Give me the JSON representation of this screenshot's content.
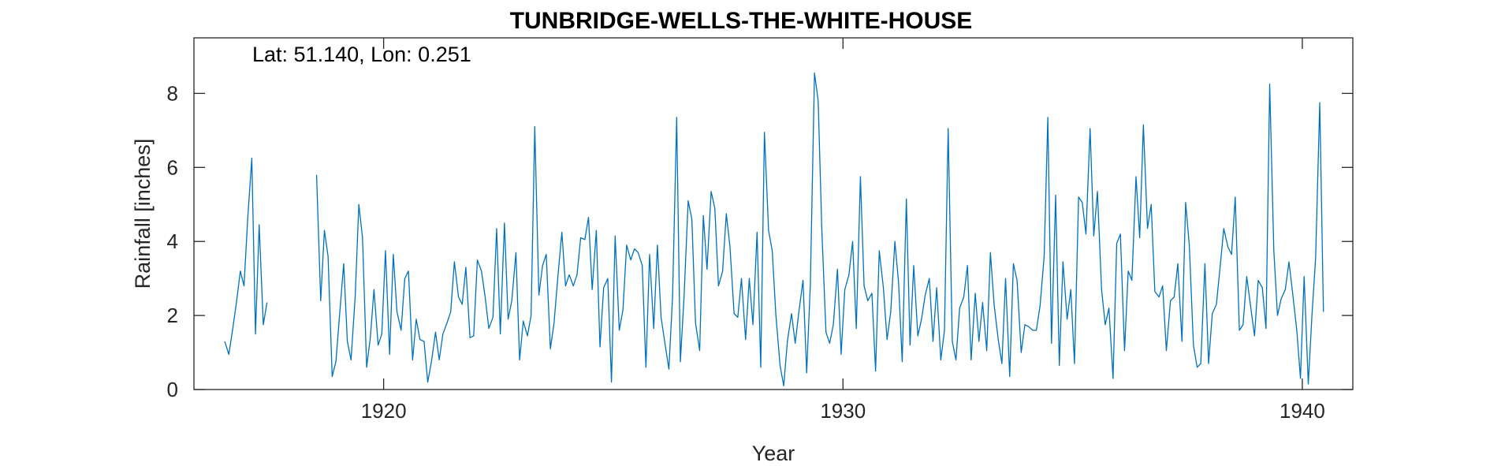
{
  "chart_data": {
    "type": "line",
    "title": "TUNBRIDGE-WELLS-THE-WHITE-HOUSE",
    "annotation": "Lat: 51.140, Lon: 0.251",
    "xlabel": "Year",
    "ylabel": "Rainfall [inches]",
    "xlim": [
      1915.87,
      1941.1
    ],
    "ylim": [
      0,
      9.5
    ],
    "xticks": [
      1920,
      1930,
      1940
    ],
    "xtick_labels": [
      "1920",
      "1930",
      "1940"
    ],
    "yticks": [
      0,
      2,
      4,
      6,
      8
    ],
    "ytick_labels": [
      "0",
      "2",
      "4",
      "6",
      "8"
    ],
    "grid": false,
    "line_color": "#0072bd",
    "series": [
      {
        "segments": [
          {
            "x": [
              1916.54,
              1916.63,
              1916.71,
              1916.79,
              1916.88,
              1916.96,
              1917.04,
              1917.13,
              1917.21,
              1917.29,
              1917.38,
              1917.46
            ],
            "y": [
              1.3,
              0.95,
              1.6,
              2.3,
              3.2,
              2.8,
              4.6,
              6.25,
              1.5,
              4.45,
              1.75,
              2.35
            ]
          },
          {
            "x": [
              1918.54,
              1918.63,
              1918.71,
              1918.79,
              1918.88,
              1918.96,
              1919.04,
              1919.13,
              1919.21,
              1919.29,
              1919.38,
              1919.46,
              1919.54,
              1919.63,
              1919.71,
              1919.79,
              1919.88,
              1919.96,
              1920.04,
              1920.13,
              1920.21,
              1920.29,
              1920.38,
              1920.46,
              1920.54,
              1920.63,
              1920.71,
              1920.79,
              1920.88,
              1920.96,
              1921.04,
              1921.13,
              1921.21,
              1921.29,
              1921.38,
              1921.46,
              1921.54,
              1921.63,
              1921.71,
              1921.79,
              1921.88,
              1921.96,
              1922.04,
              1922.13,
              1922.21,
              1922.29,
              1922.38,
              1922.46,
              1922.54,
              1922.63,
              1922.71,
              1922.79,
              1922.88,
              1922.96,
              1923.04,
              1923.13,
              1923.21,
              1923.29,
              1923.38,
              1923.46,
              1923.54,
              1923.63,
              1923.71,
              1923.79,
              1923.88,
              1923.96,
              1924.04,
              1924.13,
              1924.21,
              1924.29,
              1924.38,
              1924.46,
              1924.54,
              1924.63,
              1924.71,
              1924.79,
              1924.88,
              1924.96,
              1925.04,
              1925.13,
              1925.21,
              1925.29,
              1925.38,
              1925.46,
              1925.54,
              1925.63,
              1925.71,
              1925.79,
              1925.88,
              1925.96,
              1926.04,
              1926.13,
              1926.21,
              1926.29,
              1926.38,
              1926.46,
              1926.54,
              1926.63,
              1926.71,
              1926.79,
              1926.88,
              1926.96,
              1927.04,
              1927.13,
              1927.21,
              1927.29,
              1927.38,
              1927.46,
              1927.54,
              1927.63,
              1927.71,
              1927.79,
              1927.88,
              1927.96,
              1928.04,
              1928.13,
              1928.21,
              1928.29,
              1928.38,
              1928.46,
              1928.54,
              1928.63,
              1928.71,
              1928.79,
              1928.88,
              1928.96,
              1929.04,
              1929.13,
              1929.21,
              1929.29,
              1929.38,
              1929.46,
              1929.54,
              1929.63,
              1929.71,
              1929.79,
              1929.88,
              1929.96,
              1930.04,
              1930.13,
              1930.21,
              1930.29,
              1930.38,
              1930.46,
              1930.54,
              1930.63,
              1930.71,
              1930.79,
              1930.88,
              1930.96,
              1931.04,
              1931.13,
              1931.21,
              1931.29,
              1931.38,
              1931.46,
              1931.54,
              1931.63,
              1931.71,
              1931.79,
              1931.88,
              1931.96,
              1932.04,
              1932.13,
              1932.21,
              1932.29,
              1932.38,
              1932.46,
              1932.54,
              1932.63,
              1932.71,
              1932.79,
              1932.88,
              1932.96,
              1933.04,
              1933.13,
              1933.21,
              1933.29,
              1933.38,
              1933.46,
              1933.54,
              1933.63,
              1933.71,
              1933.79,
              1933.88,
              1933.96,
              1934.04,
              1934.13,
              1934.21,
              1934.29,
              1934.38,
              1934.46,
              1934.54,
              1934.63,
              1934.71,
              1934.79,
              1934.88,
              1934.96,
              1935.04,
              1935.13,
              1935.21,
              1935.29,
              1935.38,
              1935.46,
              1935.54,
              1935.63,
              1935.71,
              1935.79,
              1935.88,
              1935.96,
              1936.04,
              1936.13,
              1936.21,
              1936.29,
              1936.38,
              1936.46,
              1936.54,
              1936.63,
              1936.71,
              1936.79,
              1936.88,
              1936.96,
              1937.04,
              1937.13,
              1937.21,
              1937.29,
              1937.38,
              1937.46,
              1937.54,
              1937.63,
              1937.71,
              1937.79,
              1937.88,
              1937.96,
              1938.04,
              1938.13,
              1938.21,
              1938.29,
              1938.38,
              1938.46,
              1938.54,
              1938.63,
              1938.71,
              1938.79,
              1938.88,
              1938.96,
              1939.04,
              1939.13,
              1939.21,
              1939.29,
              1939.38,
              1939.46,
              1939.54,
              1939.63,
              1939.71,
              1939.79,
              1939.88,
              1939.96,
              1940.04,
              1940.13,
              1940.21,
              1940.29,
              1940.38,
              1940.46
            ],
            "y": [
              5.8,
              2.4,
              4.3,
              3.6,
              0.35,
              0.75,
              2.0,
              3.4,
              1.3,
              0.8,
              2.5,
              5.0,
              4.1,
              0.6,
              1.4,
              2.7,
              1.2,
              1.5,
              3.75,
              0.95,
              3.65,
              2.1,
              1.6,
              3.0,
              3.2,
              0.8,
              1.9,
              1.35,
              1.3,
              0.2,
              0.75,
              1.55,
              0.8,
              1.5,
              1.8,
              2.1,
              3.45,
              2.5,
              2.3,
              3.3,
              1.4,
              1.45,
              3.5,
              3.2,
              2.5,
              1.65,
              1.95,
              4.35,
              1.5,
              4.5,
              1.9,
              2.4,
              3.7,
              0.8,
              1.85,
              1.45,
              2.0,
              7.1,
              2.55,
              3.35,
              3.65,
              1.1,
              1.8,
              3.0,
              4.25,
              2.8,
              3.1,
              2.8,
              3.1,
              4.1,
              4.05,
              4.65,
              2.7,
              4.3,
              1.15,
              2.75,
              3.0,
              0.2,
              4.15,
              1.6,
              2.15,
              3.9,
              3.5,
              3.8,
              3.7,
              3.35,
              0.6,
              3.65,
              1.65,
              3.9,
              1.95,
              1.2,
              0.55,
              2.5,
              7.35,
              0.75,
              2.5,
              5.1,
              4.6,
              1.8,
              1.05,
              4.7,
              3.25,
              5.35,
              4.9,
              2.8,
              3.2,
              4.75,
              3.85,
              2.05,
              1.95,
              3.0,
              1.35,
              3.0,
              1.75,
              4.25,
              0.6,
              6.95,
              4.3,
              3.75,
              2.0,
              0.65,
              0.1,
              1.3,
              2.05,
              1.25,
              2.1,
              2.95,
              0.45,
              2.85,
              8.55,
              7.8,
              4.3,
              1.55,
              1.25,
              1.75,
              3.25,
              0.95,
              2.7,
              3.1,
              4.0,
              1.65,
              5.75,
              2.8,
              2.4,
              2.6,
              0.5,
              3.75,
              2.75,
              1.35,
              2.1,
              4.0,
              2.9,
              0.75,
              5.15,
              1.2,
              3.35,
              1.45,
              1.9,
              2.55,
              3.0,
              1.3,
              2.75,
              0.8,
              1.6,
              7.05,
              1.3,
              0.8,
              2.2,
              2.5,
              3.35,
              0.8,
              2.6,
              1.3,
              2.35,
              1.05,
              3.7,
              2.3,
              1.35,
              0.7,
              3.0,
              0.35,
              3.4,
              2.95,
              1.0,
              1.75,
              1.7,
              1.6,
              1.6,
              2.25,
              3.6,
              7.35,
              1.25,
              5.25,
              0.65,
              3.45,
              1.9,
              2.7,
              0.7,
              5.2,
              5.05,
              4.2,
              7.05,
              4.15,
              5.35,
              2.7,
              1.75,
              2.2,
              0.3,
              3.95,
              4.2,
              1.05,
              3.2,
              2.95,
              5.75,
              4.1,
              7.15,
              4.35,
              5.0,
              2.65,
              2.5,
              2.8,
              1.05,
              2.4,
              2.5,
              3.4,
              1.3,
              5.05,
              3.9,
              1.2,
              0.6,
              0.7,
              3.4,
              0.7,
              2.05,
              2.3,
              3.3,
              4.35,
              3.85,
              3.65,
              5.2,
              1.6,
              1.75,
              3.05,
              2.2,
              1.45,
              2.95,
              2.75,
              1.65,
              8.25,
              3.75,
              2.0,
              2.45,
              2.7,
              3.45,
              2.6,
              1.6,
              0.3,
              3.05,
              0.15,
              2.0,
              3.55,
              7.75,
              2.1
            ]
          }
        ]
      }
    ]
  }
}
